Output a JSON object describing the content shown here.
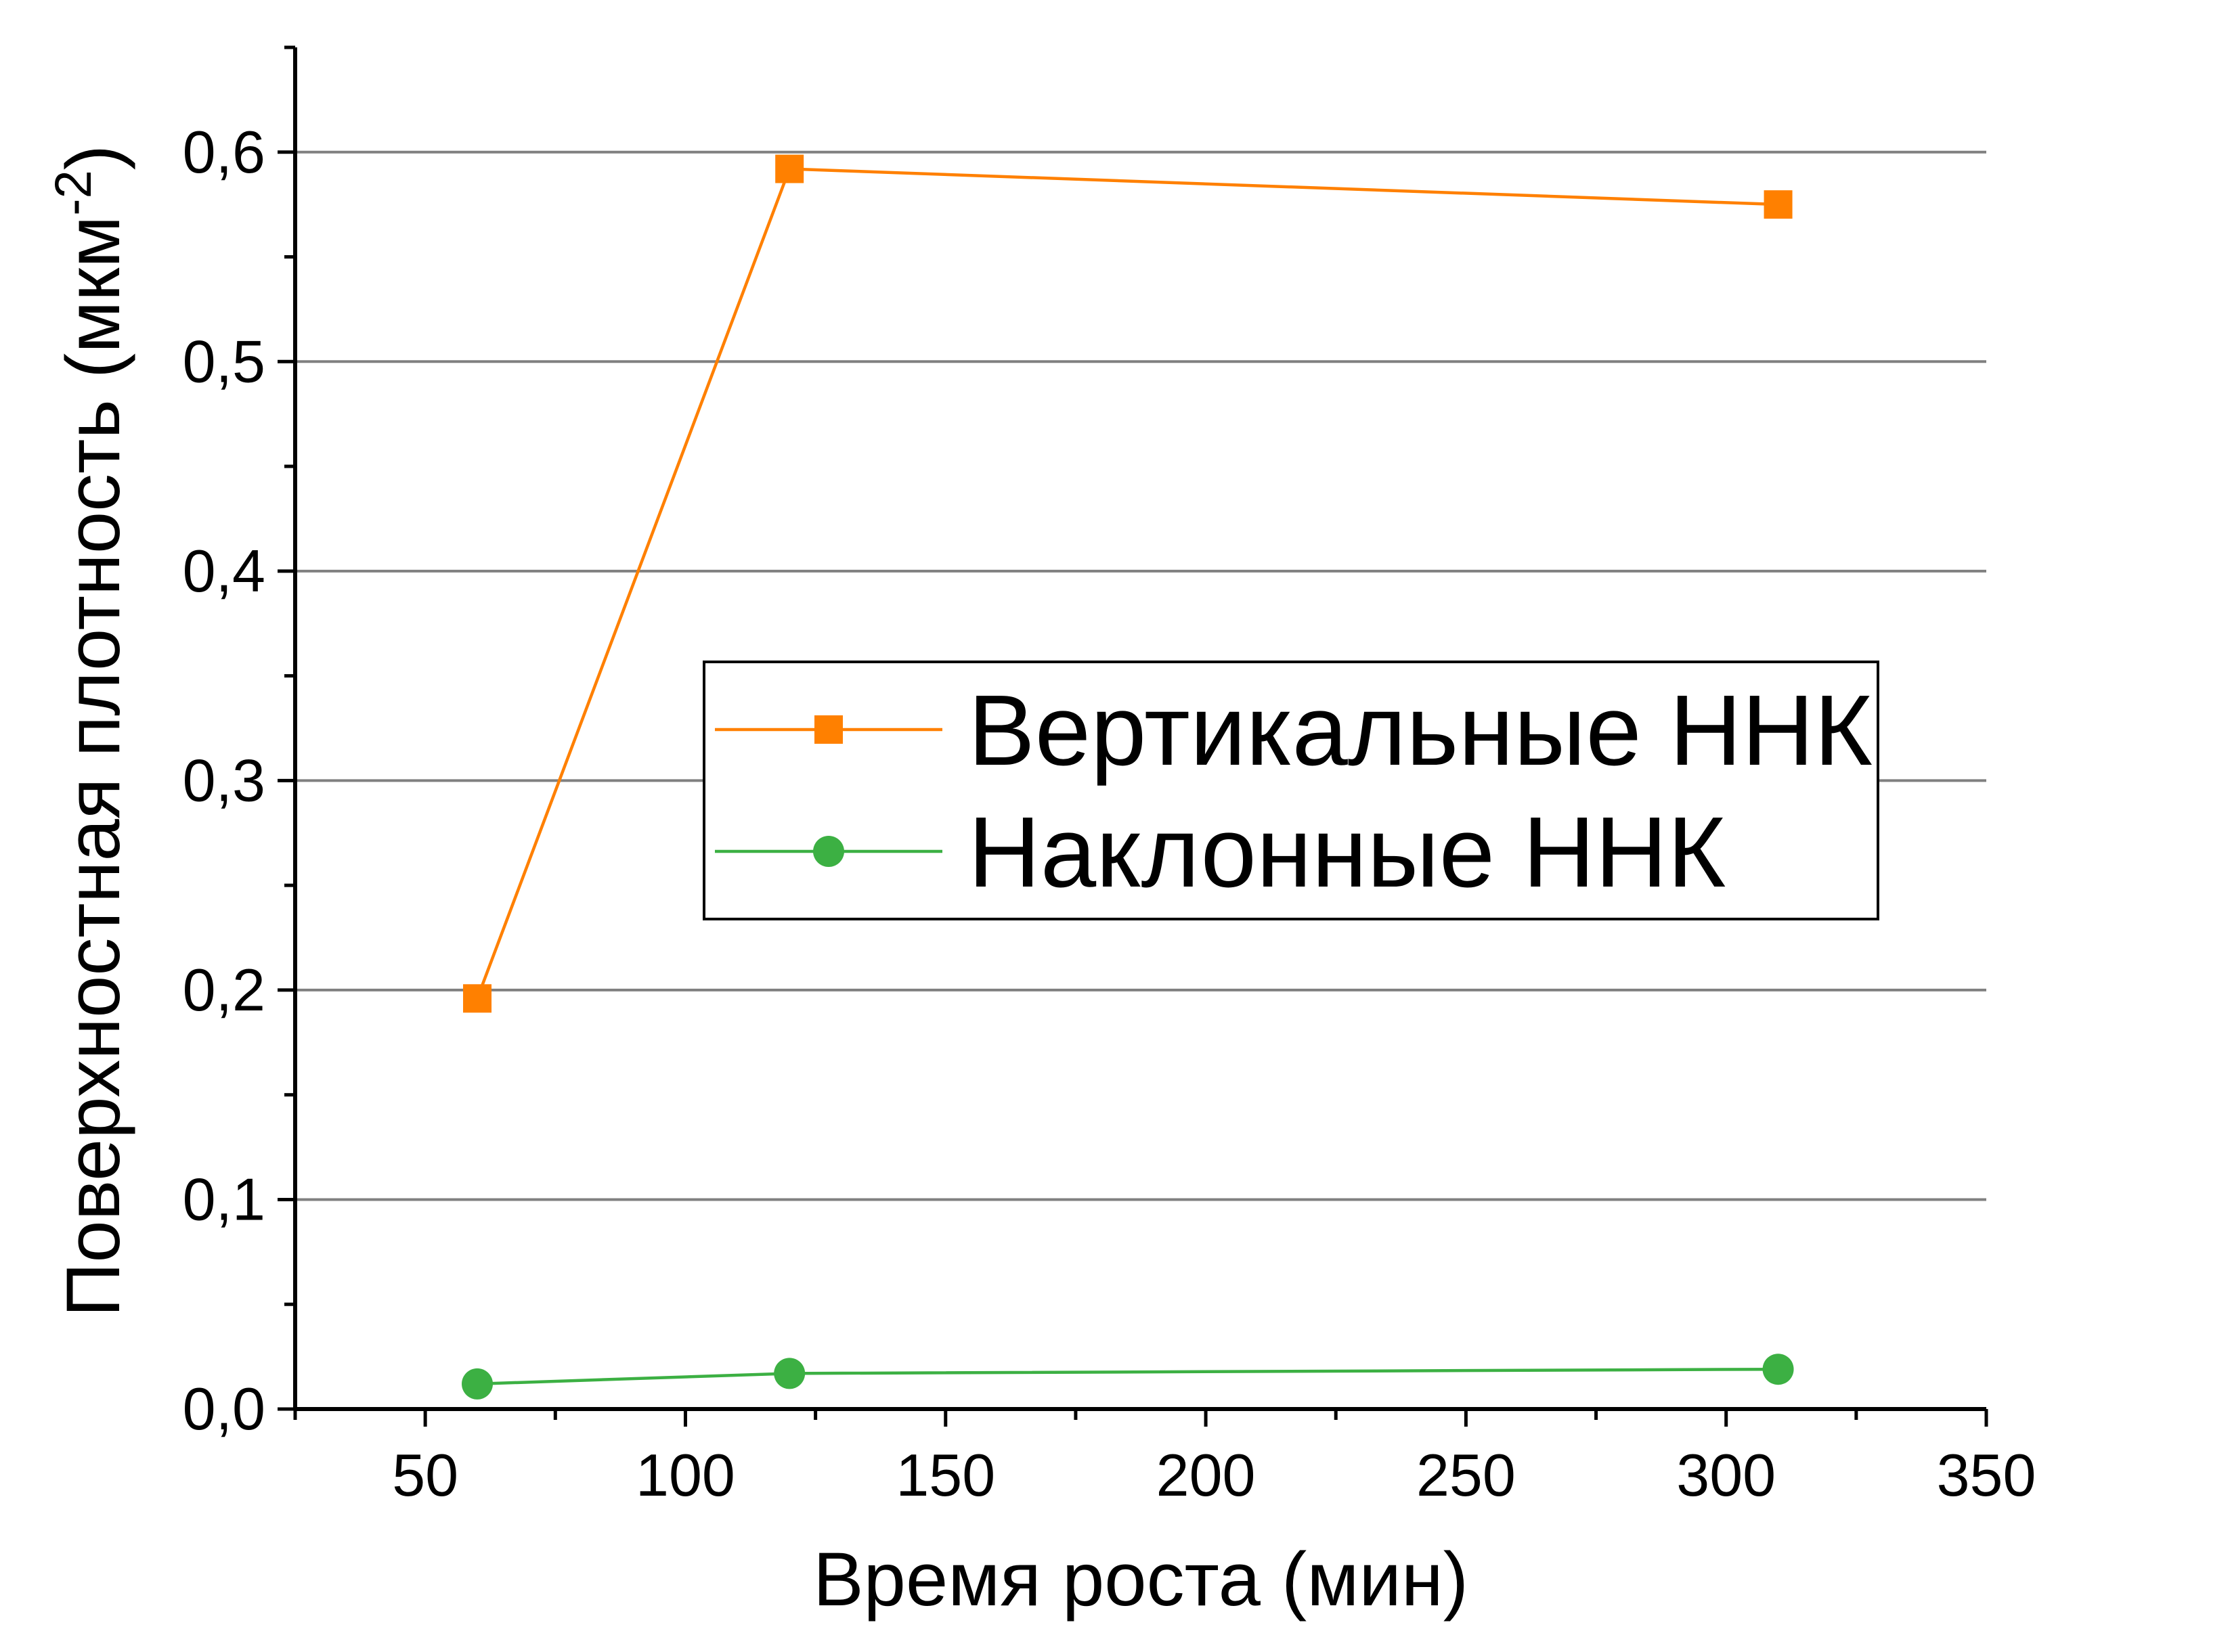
{
  "chart_data": {
    "type": "line",
    "xlabel": "Время роста (мин)",
    "ylabel_main": "Поверхностная плотность (мкм",
    "ylabel_sup": "-2",
    "ylabel_close": ")",
    "xlim": [
      25,
      350
    ],
    "ylim": [
      0,
      0.65
    ],
    "xticks": [
      50,
      100,
      150,
      200,
      250,
      300,
      350
    ],
    "xtick_labels": [
      "50",
      "100",
      "150",
      "200",
      "250",
      "300",
      "350"
    ],
    "xminor_step": 25,
    "yticks": [
      0,
      0.1,
      0.2,
      0.3,
      0.4,
      0.5,
      0.6
    ],
    "ytick_labels": [
      "0,0",
      "0,1",
      "0,2",
      "0,3",
      "0,4",
      "0,5",
      "0,6"
    ],
    "yminor_step": 0.05,
    "grid": "horizontal",
    "legend_position": "center-right",
    "series": [
      {
        "name": "Вертикальные ННК",
        "color": "#ff8000",
        "marker": "square",
        "x": [
          60,
          120,
          310
        ],
        "y": [
          0.196,
          0.592,
          0.575
        ]
      },
      {
        "name": "Наклонные ННК",
        "color": "#3cb043",
        "marker": "circle",
        "x": [
          60,
          120,
          310
        ],
        "y": [
          0.012,
          0.017,
          0.019
        ]
      }
    ]
  }
}
